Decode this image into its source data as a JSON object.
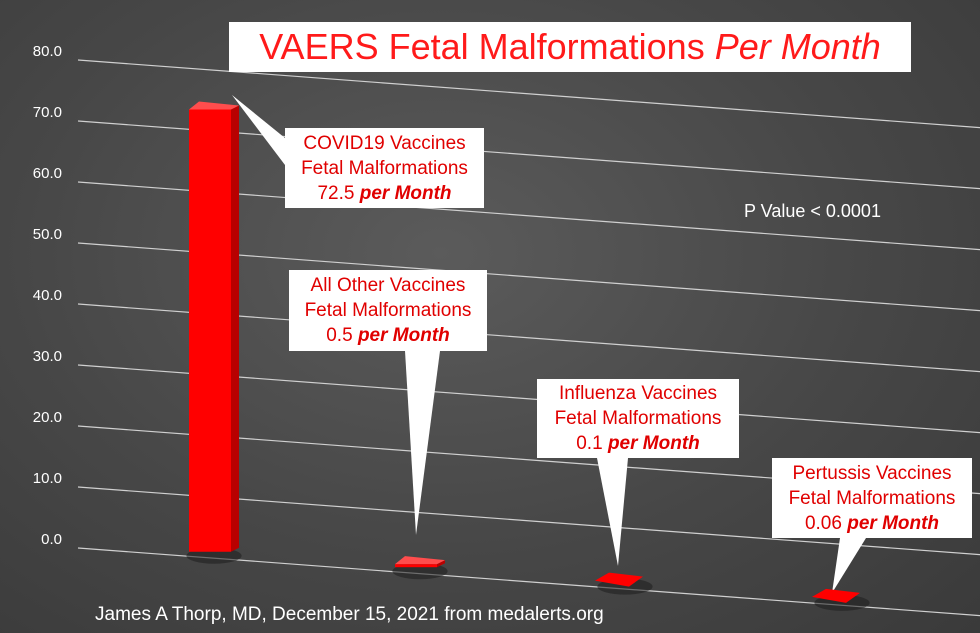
{
  "chart_data": {
    "type": "bar",
    "title": "VAERS Fetal Malformations",
    "title_emphasis": "Per Month",
    "ylim": [
      0,
      80
    ],
    "y_ticks": [
      "0.0",
      "10.0",
      "20.0",
      "30.0",
      "40.0",
      "50.0",
      "60.0",
      "70.0",
      "80.0"
    ],
    "bar_color": "#ff0000",
    "grid": true,
    "categories": [
      "COVID19 Vaccines",
      "All Other Vaccines",
      "Influenza Vaccines",
      "Pertussis Vaccines"
    ],
    "values": [
      72.5,
      0.5,
      0.1,
      0.06
    ],
    "annotations": [
      {
        "line1": "COVID19 Vaccines",
        "line2": "Fetal Malformations",
        "value": "72.5",
        "unit": "per Month"
      },
      {
        "line1": "All Other Vaccines",
        "line2": "Fetal Malformations",
        "value": "0.5",
        "unit": "per Month"
      },
      {
        "line1": "Influenza Vaccines",
        "line2": "Fetal Malformations",
        "value": "0.1",
        "unit": "per Month"
      },
      {
        "line1": "Pertussis Vaccines",
        "line2": "Fetal Malformations",
        "value": "0.06",
        "unit": "per Month"
      }
    ],
    "p_value_text": "P Value < 0.0001",
    "credit": "James A Thorp, MD, December 15, 2021 from medalerts.org"
  }
}
